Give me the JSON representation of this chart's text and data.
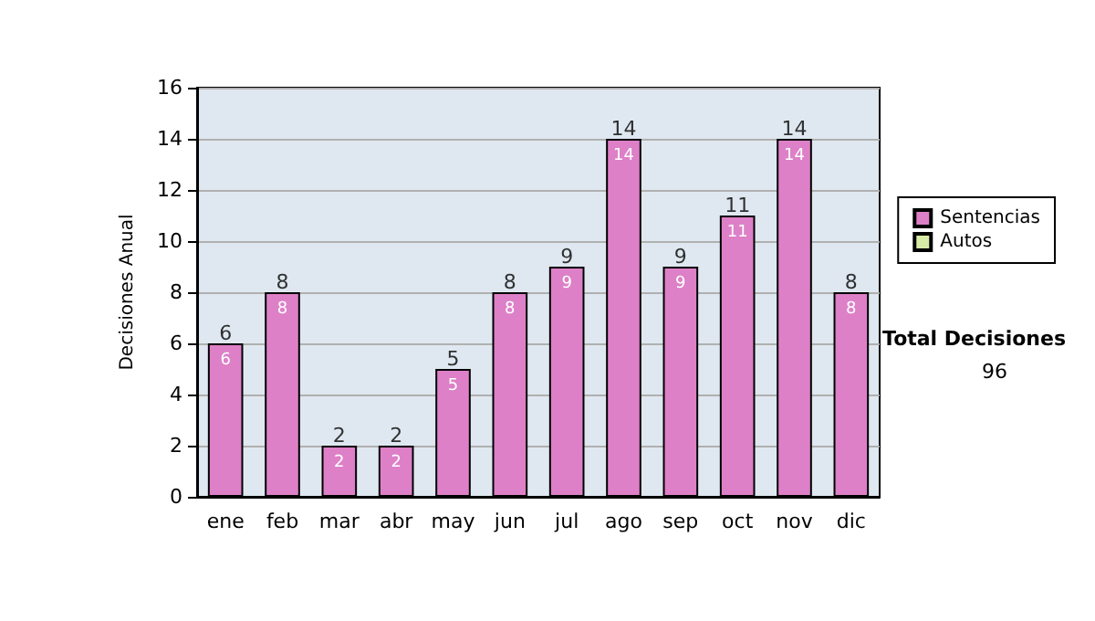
{
  "chart_data": {
    "type": "bar",
    "stacked": true,
    "ylabel": "Decisiones Anual",
    "categories": [
      "ene",
      "feb",
      "mar",
      "abr",
      "may",
      "jun",
      "jul",
      "ago",
      "sep",
      "oct",
      "nov",
      "dic"
    ],
    "series": [
      {
        "name": "Sentencias",
        "color": "#dd80c8",
        "values": [
          6,
          8,
          2,
          2,
          5,
          8,
          9,
          14,
          9,
          11,
          14,
          8
        ],
        "value_labels": [
          "6",
          "8",
          "2",
          "2",
          "5",
          "8",
          "9",
          "14",
          "9",
          "11",
          "14",
          "8"
        ]
      },
      {
        "name": "Autos",
        "color": "#d8eca8",
        "values": [
          0,
          0,
          0,
          0,
          0,
          0,
          0,
          0,
          0,
          0,
          0,
          0
        ]
      }
    ],
    "totals": [
      "6",
      "8",
      "2",
      "2",
      "5",
      "8",
      "9",
      "14",
      "9",
      "11",
      "14",
      "8"
    ],
    "ylim": [
      0,
      16
    ],
    "yticks": [
      0,
      2,
      4,
      6,
      8,
      10,
      12,
      14,
      16
    ],
    "grid": "y",
    "legend": "right",
    "annotations": [
      "Total Decisiones",
      "96"
    ]
  }
}
